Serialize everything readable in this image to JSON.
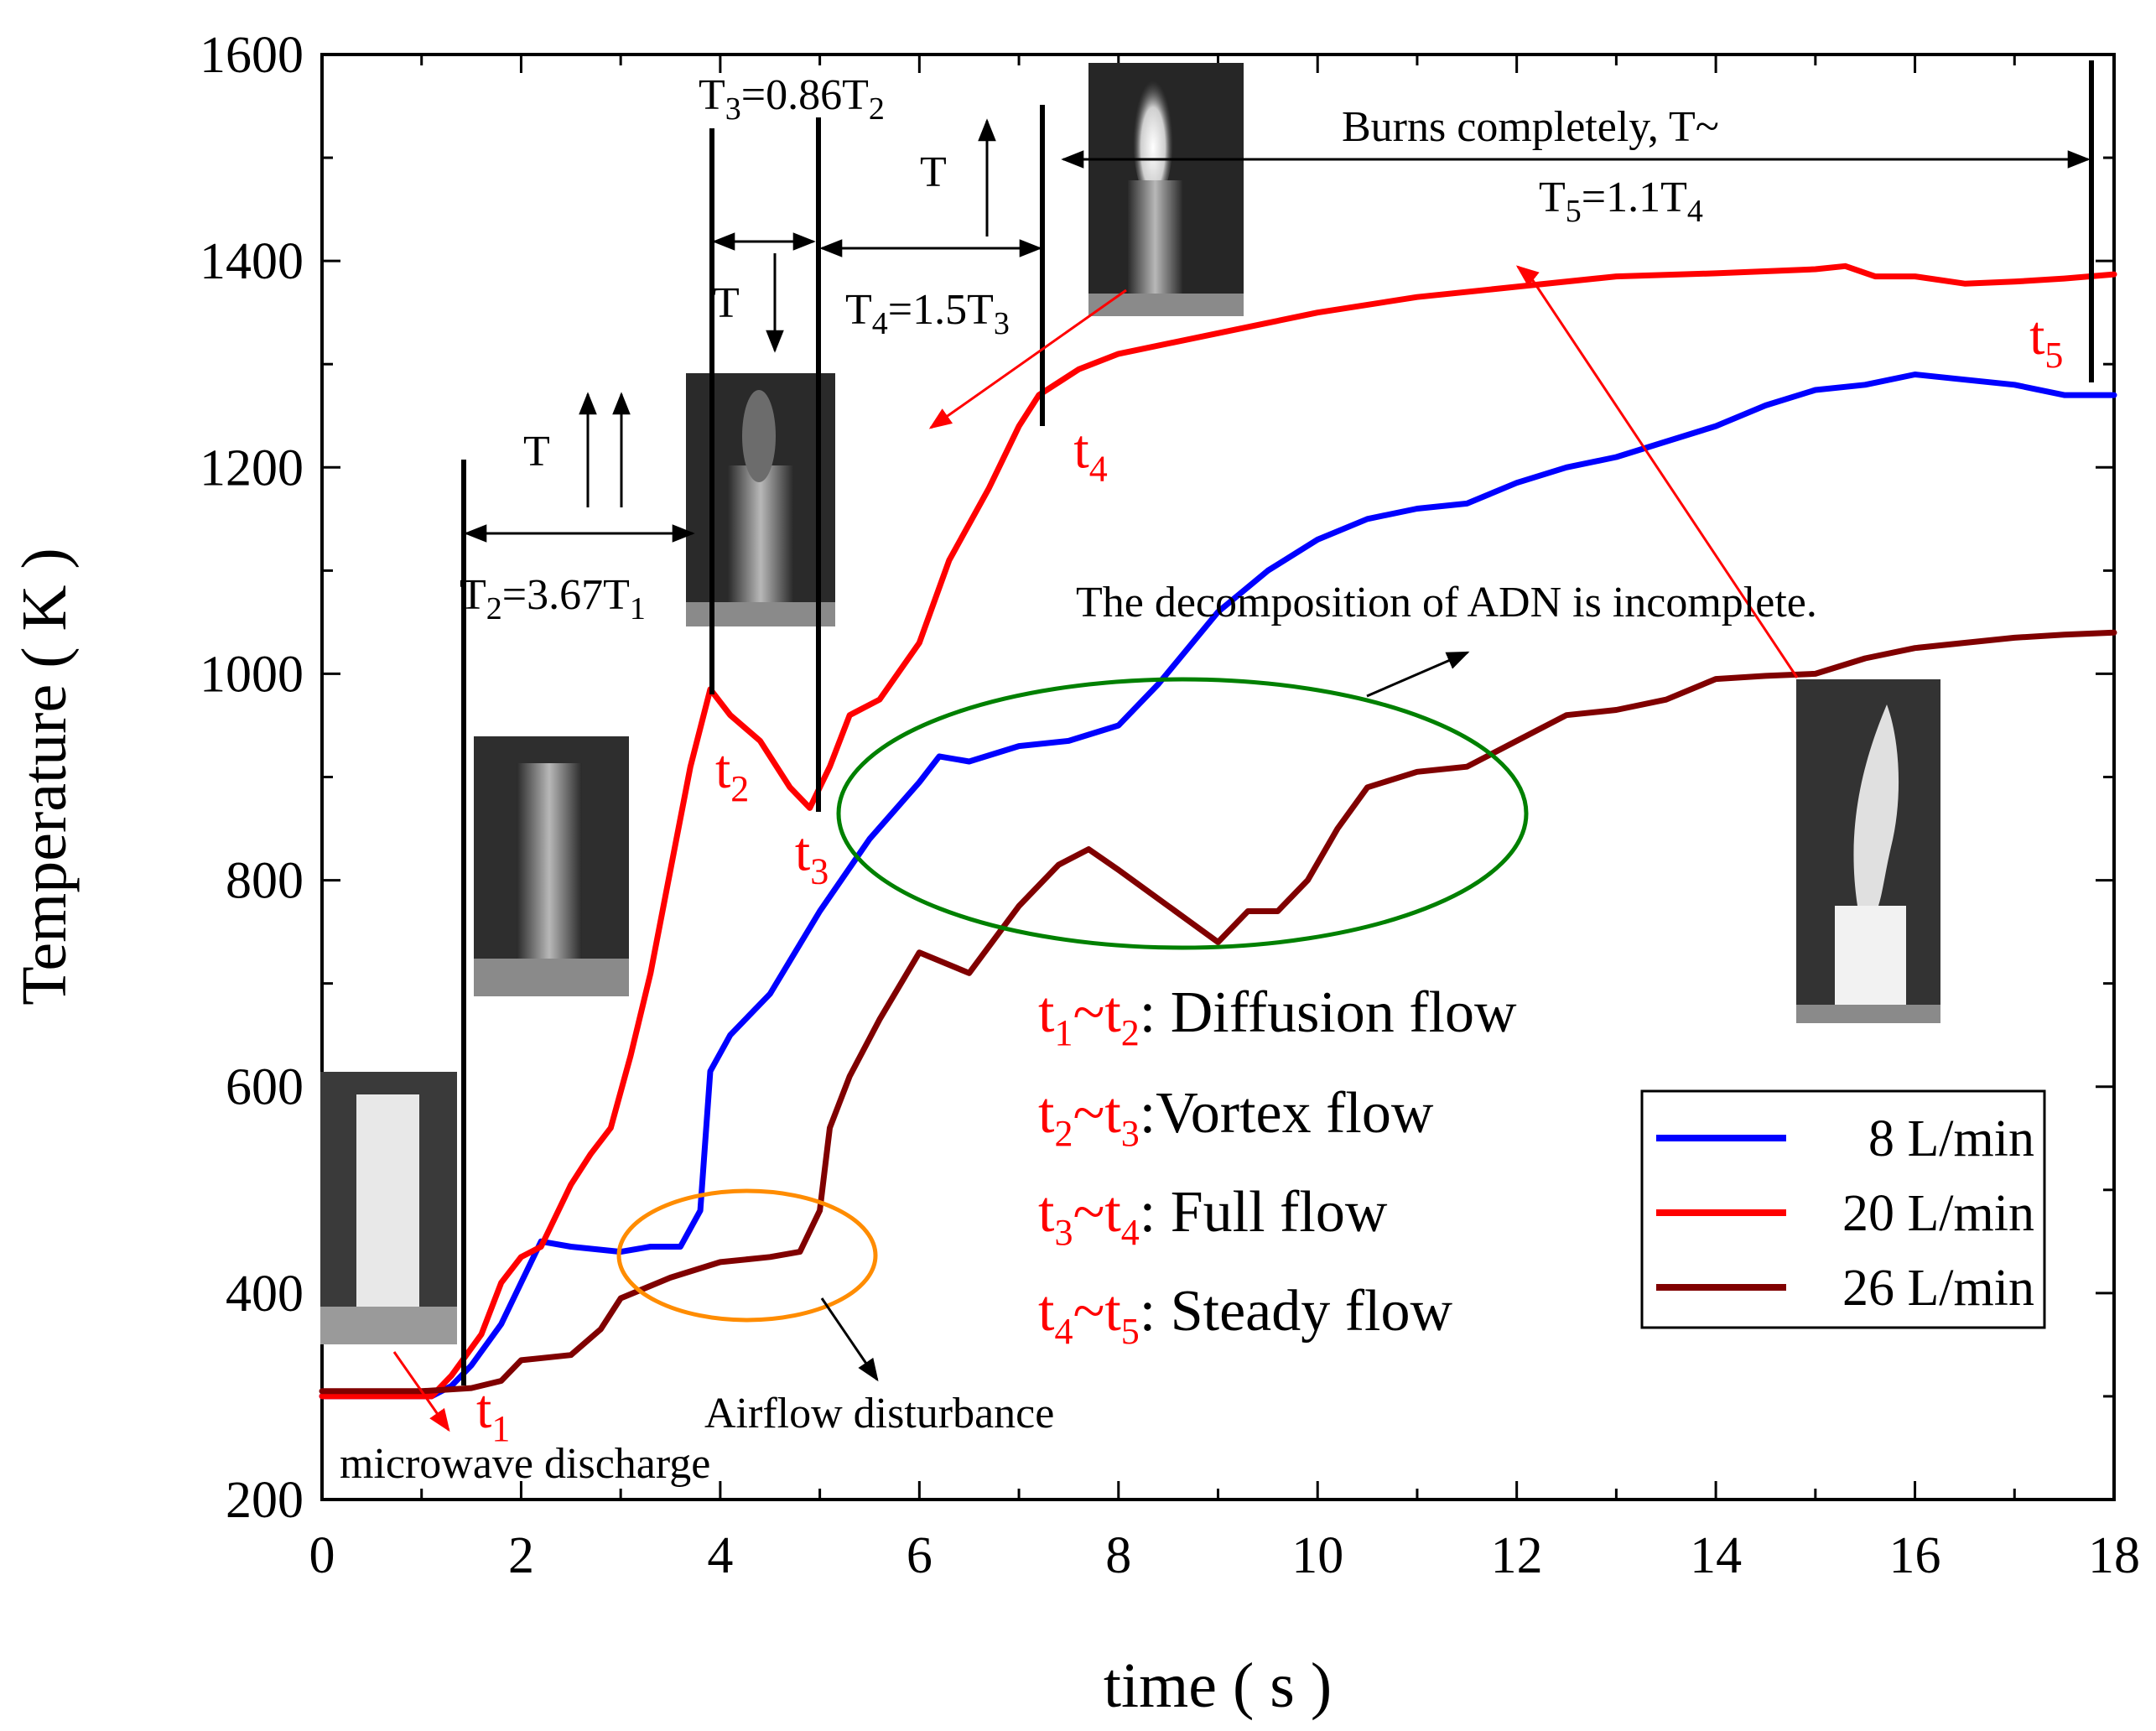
{
  "chart_data": {
    "type": "line",
    "xlabel": "time ( s )",
    "ylabel": "Temperature ( K )",
    "xlim": [
      0,
      18
    ],
    "ylim": [
      200,
      1600
    ],
    "xticks": [
      "0",
      "2",
      "4",
      "6",
      "8",
      "10",
      "12",
      "14",
      "16",
      "18"
    ],
    "yticks": [
      "200",
      "400",
      "600",
      "800",
      "1000",
      "1200",
      "1400",
      "1600"
    ],
    "series": [
      {
        "name": "8 L/min",
        "color": "#0000ff",
        "points": [
          [
            0,
            300
          ],
          [
            1.1,
            300
          ],
          [
            1.3,
            310
          ],
          [
            1.5,
            330
          ],
          [
            1.8,
            370
          ],
          [
            2.0,
            410
          ],
          [
            2.2,
            450
          ],
          [
            2.5,
            445
          ],
          [
            3.0,
            440
          ],
          [
            3.3,
            445
          ],
          [
            3.6,
            445
          ],
          [
            3.8,
            480
          ],
          [
            3.9,
            615
          ],
          [
            4.1,
            650
          ],
          [
            4.5,
            690
          ],
          [
            5.0,
            770
          ],
          [
            5.5,
            840
          ],
          [
            6.0,
            895
          ],
          [
            6.2,
            920
          ],
          [
            6.5,
            915
          ],
          [
            7.0,
            930
          ],
          [
            7.5,
            935
          ],
          [
            8.0,
            950
          ],
          [
            8.4,
            990
          ],
          [
            9.0,
            1060
          ],
          [
            9.5,
            1100
          ],
          [
            10.0,
            1130
          ],
          [
            10.5,
            1150
          ],
          [
            11.0,
            1160
          ],
          [
            11.5,
            1165
          ],
          [
            12.0,
            1185
          ],
          [
            12.5,
            1200
          ],
          [
            13.0,
            1210
          ],
          [
            13.5,
            1225
          ],
          [
            14.0,
            1240
          ],
          [
            14.5,
            1260
          ],
          [
            15.0,
            1275
          ],
          [
            15.5,
            1280
          ],
          [
            16.0,
            1290
          ],
          [
            16.5,
            1285
          ],
          [
            17.0,
            1280
          ],
          [
            17.5,
            1270
          ],
          [
            18.0,
            1270
          ]
        ]
      },
      {
        "name": "20 L/min",
        "color": "#ff0000",
        "points": [
          [
            0,
            300
          ],
          [
            1.1,
            300
          ],
          [
            1.3,
            320
          ],
          [
            1.6,
            360
          ],
          [
            1.8,
            410
          ],
          [
            2.0,
            435
          ],
          [
            2.2,
            445
          ],
          [
            2.5,
            505
          ],
          [
            2.7,
            535
          ],
          [
            2.9,
            560
          ],
          [
            3.1,
            630
          ],
          [
            3.3,
            710
          ],
          [
            3.5,
            810
          ],
          [
            3.7,
            910
          ],
          [
            3.9,
            985
          ],
          [
            4.1,
            960
          ],
          [
            4.4,
            935
          ],
          [
            4.7,
            890
          ],
          [
            4.9,
            870
          ],
          [
            5.1,
            910
          ],
          [
            5.3,
            960
          ],
          [
            5.6,
            975
          ],
          [
            6.0,
            1030
          ],
          [
            6.3,
            1110
          ],
          [
            6.7,
            1180
          ],
          [
            7.0,
            1240
          ],
          [
            7.2,
            1270
          ],
          [
            7.6,
            1295
          ],
          [
            8.0,
            1310
          ],
          [
            9.0,
            1330
          ],
          [
            10.0,
            1350
          ],
          [
            11.0,
            1365
          ],
          [
            12.0,
            1375
          ],
          [
            13.0,
            1385
          ],
          [
            14.0,
            1388
          ],
          [
            15.0,
            1392
          ],
          [
            15.3,
            1395
          ],
          [
            15.6,
            1385
          ],
          [
            16.0,
            1385
          ],
          [
            16.5,
            1378
          ],
          [
            17.0,
            1380
          ],
          [
            17.5,
            1383
          ],
          [
            18.0,
            1387
          ]
        ]
      },
      {
        "name": "26 L/min",
        "color": "#800000",
        "points": [
          [
            0,
            305
          ],
          [
            1.0,
            305
          ],
          [
            1.5,
            308
          ],
          [
            1.8,
            315
          ],
          [
            2.0,
            335
          ],
          [
            2.5,
            340
          ],
          [
            2.8,
            365
          ],
          [
            3.0,
            395
          ],
          [
            3.5,
            415
          ],
          [
            4.0,
            430
          ],
          [
            4.5,
            435
          ],
          [
            4.8,
            440
          ],
          [
            5.0,
            480
          ],
          [
            5.1,
            560
          ],
          [
            5.3,
            610
          ],
          [
            5.6,
            665
          ],
          [
            6.0,
            730
          ],
          [
            6.5,
            710
          ],
          [
            7.0,
            775
          ],
          [
            7.4,
            815
          ],
          [
            7.7,
            830
          ],
          [
            8.0,
            810
          ],
          [
            8.5,
            775
          ],
          [
            9.0,
            740
          ],
          [
            9.3,
            770
          ],
          [
            9.6,
            770
          ],
          [
            9.9,
            800
          ],
          [
            10.2,
            850
          ],
          [
            10.5,
            890
          ],
          [
            11.0,
            905
          ],
          [
            11.5,
            910
          ],
          [
            12.0,
            935
          ],
          [
            12.5,
            960
          ],
          [
            13.0,
            965
          ],
          [
            13.5,
            975
          ],
          [
            14.0,
            995
          ],
          [
            14.5,
            998
          ],
          [
            15.0,
            1000
          ],
          [
            15.5,
            1015
          ],
          [
            16.0,
            1025
          ],
          [
            16.5,
            1030
          ],
          [
            17.0,
            1035
          ],
          [
            17.5,
            1038
          ],
          [
            18.0,
            1040
          ]
        ]
      }
    ],
    "markers": [
      {
        "label": "t",
        "sub": "1",
        "x": 1.55,
        "y": 270
      },
      {
        "label": "t",
        "sub": "2",
        "x": 3.95,
        "y": 890
      },
      {
        "label": "t",
        "sub": "3",
        "x": 4.75,
        "y": 810
      },
      {
        "label": "t",
        "sub": "4",
        "x": 7.55,
        "y": 1200
      },
      {
        "label": "t",
        "sub": "5",
        "x": 17.15,
        "y": 1310
      }
    ],
    "annotations": {
      "t1_t2": {
        "prefix": "T",
        "sub1": "2",
        "mid": "=3.67T",
        "sub2": "1"
      },
      "t2_t3": {
        "prefix": "T",
        "sub1": "3",
        "mid": "=0.86T",
        "sub2": "2"
      },
      "t3_t4": {
        "prefix": "T",
        "sub1": "4",
        "mid": "=1.5T",
        "sub2": "3"
      },
      "t4_t5_line1": "Burns completely, T~",
      "t4_t5_line2": {
        "prefix": "T",
        "sub1": "5",
        "mid": "=1.1T",
        "sub2": "4"
      },
      "temp_symbol": "T",
      "microwave": "microwave discharge",
      "airflow": "Airflow disturbance",
      "adn": "The decomposition of ADN is incomplete."
    },
    "phases": [
      {
        "a": "1",
        "b": "2",
        "name": ": Diffusion flow"
      },
      {
        "a": "2",
        "b": "3",
        "name": ":Vortex flow"
      },
      {
        "a": "3",
        "b": "4",
        "name": ": Full flow"
      },
      {
        "a": "4",
        "b": "5",
        "name": ": Steady flow"
      }
    ]
  }
}
